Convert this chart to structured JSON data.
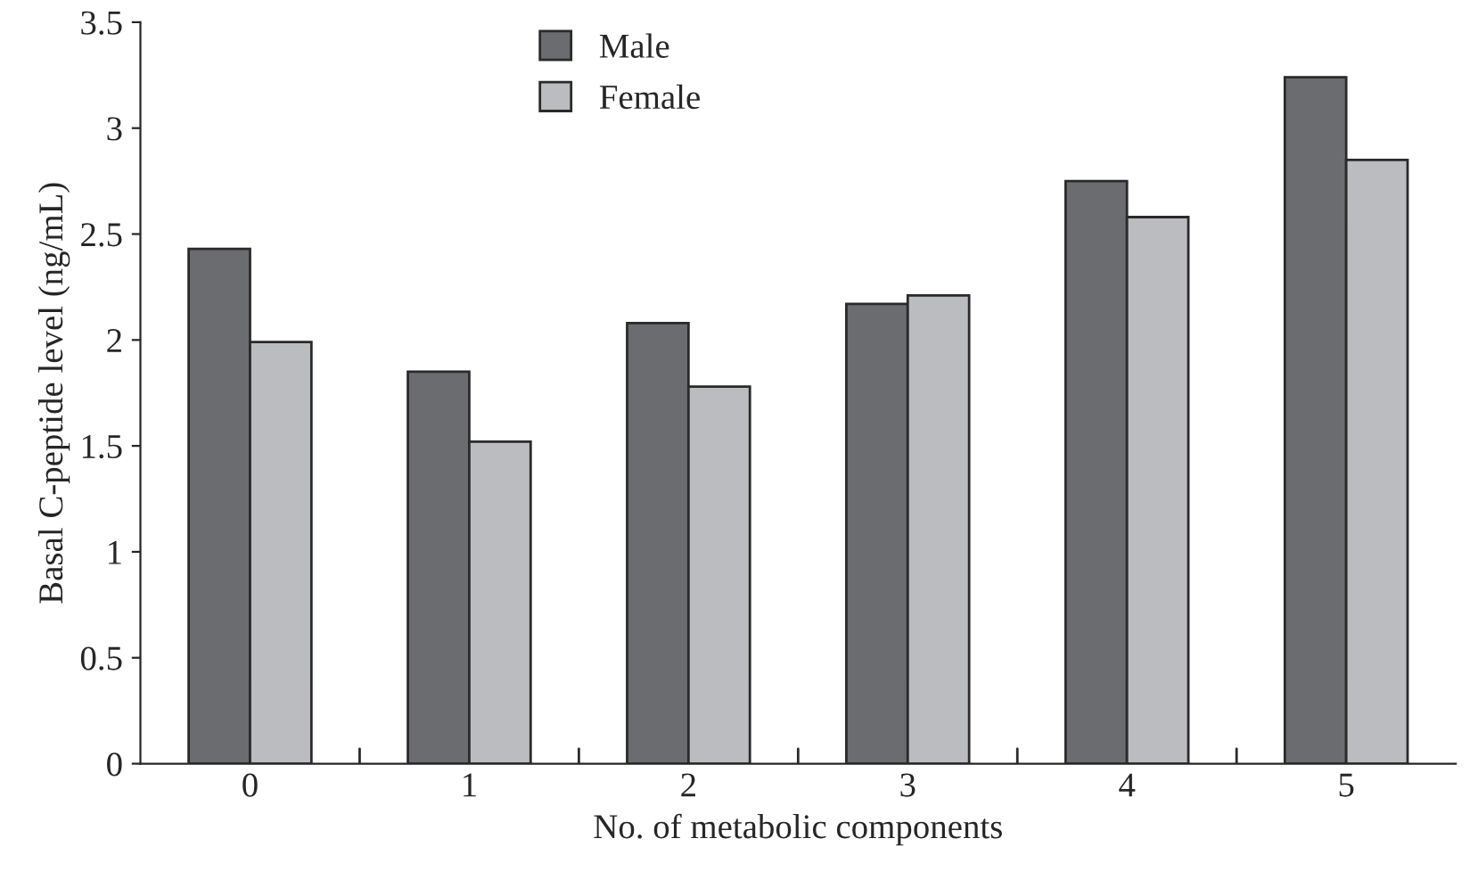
{
  "chart_data": {
    "type": "bar",
    "xlabel": "No. of metabolic components",
    "ylabel": "Basal C-peptide level (ng/mL)",
    "categories": [
      "0",
      "1",
      "2",
      "3",
      "4",
      "5"
    ],
    "series": [
      {
        "name": "Male",
        "color": "#6b6c70",
        "values": [
          2.43,
          1.85,
          2.08,
          2.17,
          2.75,
          3.24
        ]
      },
      {
        "name": "Female",
        "color": "#bbbcc0",
        "values": [
          1.99,
          1.52,
          1.78,
          2.21,
          2.58,
          2.85
        ]
      }
    ],
    "ylim": [
      0,
      3.5
    ],
    "yticks": [
      0,
      0.5,
      1,
      1.5,
      2,
      2.5,
      3,
      3.5
    ],
    "grid": false,
    "legend": "top left"
  }
}
